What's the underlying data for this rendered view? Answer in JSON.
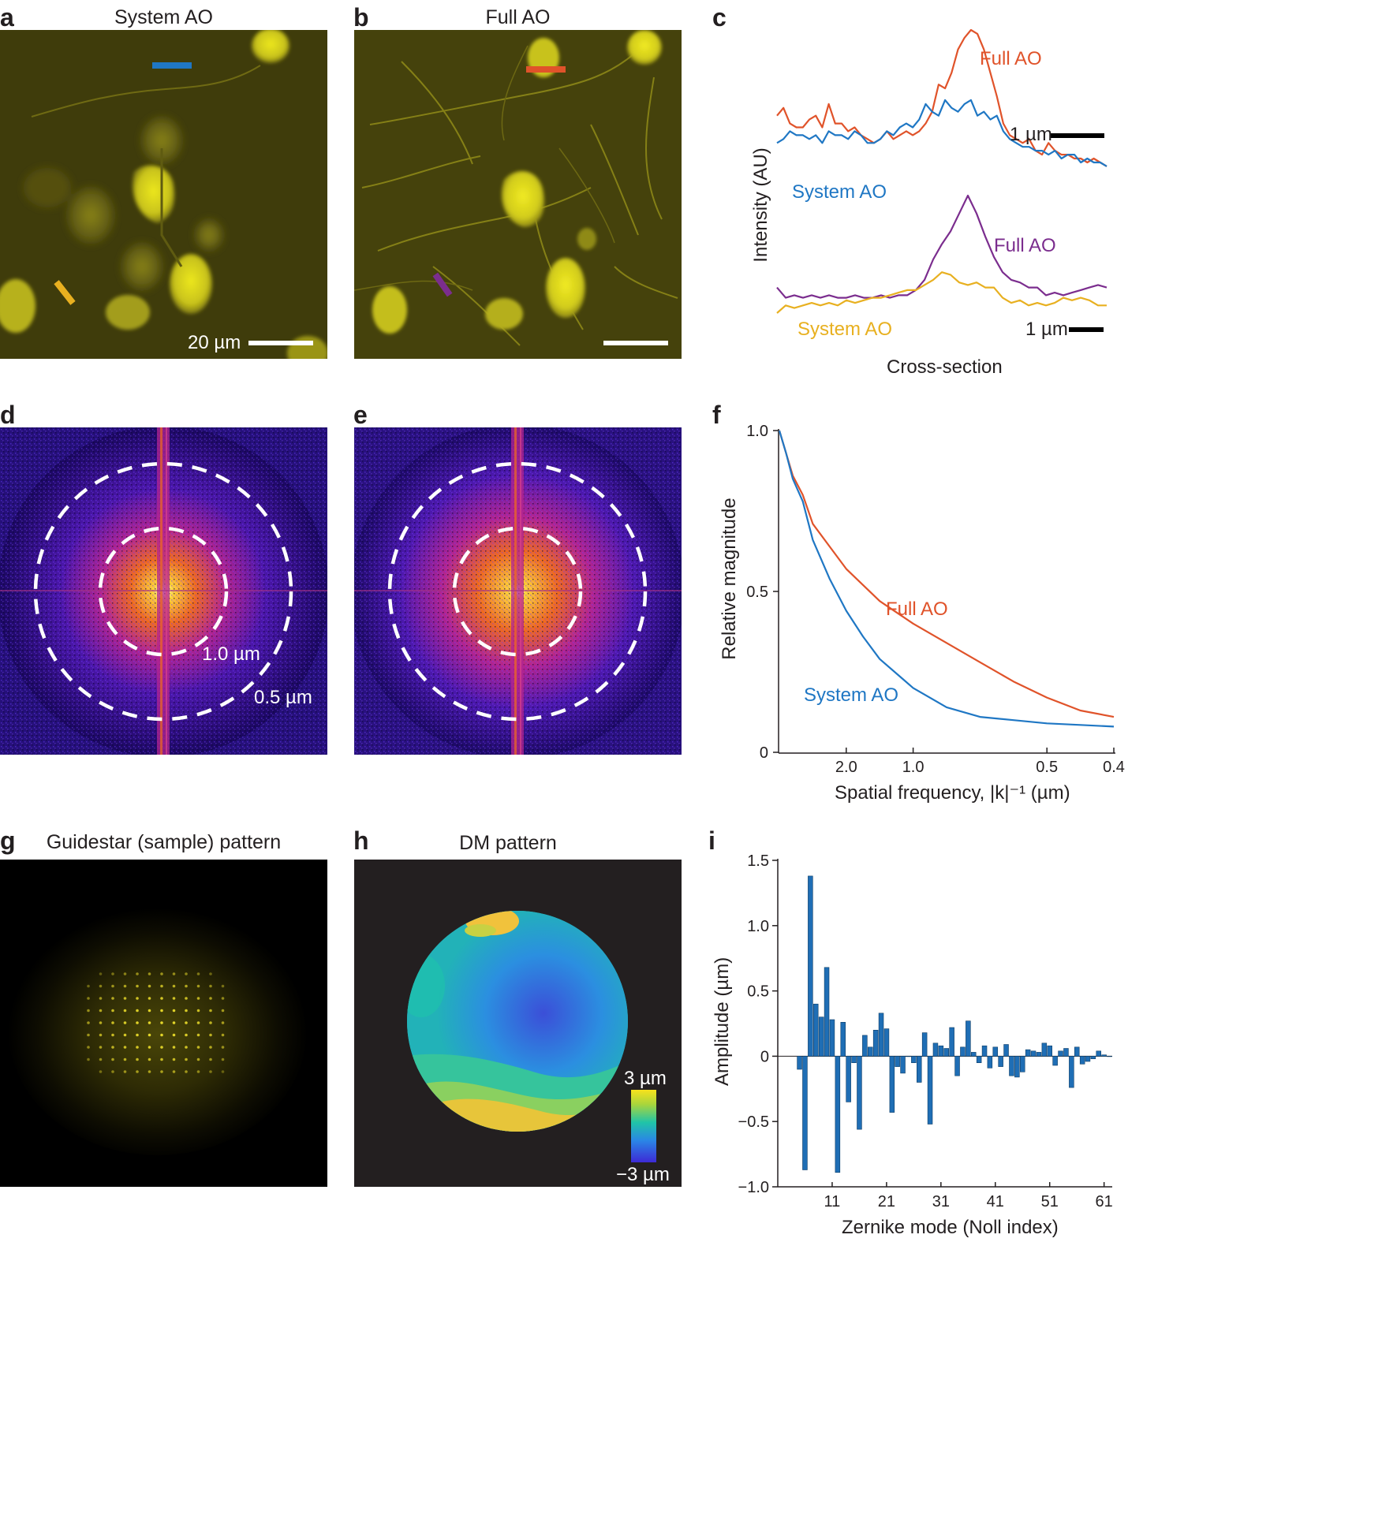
{
  "panel_letters": {
    "a": "a",
    "b": "b",
    "c": "c",
    "d": "d",
    "e": "e",
    "f": "f",
    "g": "g",
    "h": "h",
    "i": "i"
  },
  "titles": {
    "a": "System AO",
    "b": "Full AO",
    "g": "Guidestar (sample) pattern",
    "h": "DM pattern"
  },
  "panel_a": {
    "scalebar_label": "20 µm"
  },
  "panel_d": {
    "ring_inner_label": "1.0 µm",
    "ring_outer_label": "0.5 µm"
  },
  "panel_h": {
    "colorbar_max": "3 µm",
    "colorbar_min": "−3  µm"
  },
  "colors": {
    "system_ao_top": "#1f77c4",
    "full_ao_top": "#e0532a",
    "system_ao_bottom": "#e8b020",
    "full_ao_bottom": "#7b2d8e",
    "bars": "#1f6eb5",
    "neuron": "#c8c21e",
    "background_neuron": "#4d4a0e"
  },
  "chart_data": [
    {
      "id": "c",
      "type": "line",
      "xlabel": "Cross-section",
      "ylabel": "Intensity (AU)",
      "scalebar_top": "1 µm",
      "scalebar_bottom": "1 µm",
      "series_top": [
        {
          "name": "Full AO",
          "values": [
            0.56,
            0.6,
            0.52,
            0.5,
            0.5,
            0.54,
            0.56,
            0.5,
            0.62,
            0.52,
            0.52,
            0.48,
            0.5,
            0.46,
            0.44,
            0.42,
            0.44,
            0.48,
            0.44,
            0.46,
            0.48,
            0.46,
            0.48,
            0.52,
            0.58,
            0.72,
            0.7,
            0.78,
            0.9,
            0.96,
            1.0,
            0.98,
            0.9,
            0.78,
            0.66,
            0.52,
            0.46,
            0.44,
            0.42,
            0.44,
            0.38,
            0.36,
            0.42,
            0.38,
            0.36,
            0.36,
            0.34,
            0.34,
            0.32,
            0.34,
            0.32,
            0.3
          ]
        },
        {
          "name": "System AO",
          "values": [
            0.42,
            0.44,
            0.48,
            0.46,
            0.46,
            0.44,
            0.46,
            0.42,
            0.48,
            0.46,
            0.46,
            0.44,
            0.48,
            0.46,
            0.42,
            0.42,
            0.44,
            0.48,
            0.46,
            0.5,
            0.52,
            0.5,
            0.54,
            0.62,
            0.58,
            0.56,
            0.64,
            0.6,
            0.58,
            0.62,
            0.64,
            0.56,
            0.58,
            0.54,
            0.56,
            0.48,
            0.44,
            0.42,
            0.4,
            0.4,
            0.38,
            0.38,
            0.36,
            0.38,
            0.34,
            0.36,
            0.36,
            0.32,
            0.34,
            0.32,
            0.32,
            0.3
          ]
        }
      ],
      "series_bottom": [
        {
          "name": "Full AO",
          "values": [
            0.28,
            0.2,
            0.22,
            0.2,
            0.22,
            0.2,
            0.22,
            0.2,
            0.2,
            0.22,
            0.2,
            0.2,
            0.22,
            0.2,
            0.22,
            0.22,
            0.26,
            0.34,
            0.5,
            0.62,
            0.72,
            0.86,
            1.0,
            0.86,
            0.68,
            0.52,
            0.4,
            0.34,
            0.32,
            0.28,
            0.28,
            0.22,
            0.24,
            0.22,
            0.24,
            0.26,
            0.28,
            0.3,
            0.28
          ]
        },
        {
          "name": "System AO",
          "values": [
            0.08,
            0.14,
            0.12,
            0.14,
            0.16,
            0.14,
            0.16,
            0.14,
            0.18,
            0.16,
            0.18,
            0.2,
            0.2,
            0.22,
            0.24,
            0.26,
            0.26,
            0.3,
            0.34,
            0.4,
            0.38,
            0.32,
            0.3,
            0.32,
            0.28,
            0.28,
            0.2,
            0.16,
            0.18,
            0.14,
            0.16,
            0.14,
            0.16,
            0.2,
            0.18,
            0.2,
            0.18,
            0.14,
            0.14
          ]
        }
      ]
    },
    {
      "id": "f",
      "type": "line",
      "xlabel": "Spatial frequency, |k|⁻¹ (µm)",
      "ylabel": "Relative magnitude",
      "yticks": [
        "1.0",
        "0.5",
        "0"
      ],
      "xticks": [
        "2.0",
        "1.0",
        "0.5",
        "0.4"
      ],
      "series": [
        {
          "name": "Full AO",
          "x": [
            0.0,
            0.02,
            0.04,
            0.07,
            0.1,
            0.15,
            0.2,
            0.25,
            0.3,
            0.4,
            0.5,
            0.6,
            0.7,
            0.8,
            0.9,
            1.0
          ],
          "y": [
            1.0,
            0.93,
            0.86,
            0.8,
            0.71,
            0.64,
            0.57,
            0.52,
            0.47,
            0.4,
            0.34,
            0.28,
            0.22,
            0.17,
            0.13,
            0.11
          ]
        },
        {
          "name": "System AO",
          "x": [
            0.0,
            0.02,
            0.04,
            0.07,
            0.1,
            0.15,
            0.2,
            0.25,
            0.3,
            0.4,
            0.5,
            0.6,
            0.7,
            0.8,
            0.9,
            1.0
          ],
          "y": [
            1.0,
            0.93,
            0.85,
            0.78,
            0.66,
            0.54,
            0.44,
            0.36,
            0.29,
            0.2,
            0.14,
            0.11,
            0.1,
            0.09,
            0.085,
            0.08
          ]
        }
      ],
      "ylim": [
        0,
        1.0
      ]
    },
    {
      "id": "i",
      "type": "bar",
      "xlabel": "Zernike mode (Noll index)",
      "ylabel": "Amplitude (µm)",
      "yticks": [
        "1.5",
        "1.0",
        "0.5",
        "0",
        "−0.5",
        "−1.0"
      ],
      "xticks": [
        "11",
        "21",
        "31",
        "41",
        "51",
        "61"
      ],
      "ylim": [
        -1.0,
        1.5
      ],
      "categories": [
        5,
        6,
        7,
        8,
        9,
        10,
        11,
        12,
        13,
        14,
        15,
        16,
        17,
        18,
        19,
        20,
        21,
        22,
        23,
        24,
        25,
        26,
        27,
        28,
        29,
        30,
        31,
        32,
        33,
        34,
        35,
        36,
        37,
        38,
        39,
        40,
        41,
        42,
        43,
        44,
        45,
        46,
        47,
        48,
        49,
        50,
        51,
        52,
        53,
        54,
        55,
        56,
        57,
        58,
        59,
        60,
        61,
        62
      ],
      "values": [
        -0.1,
        -0.87,
        1.38,
        0.4,
        0.3,
        0.68,
        0.28,
        -0.89,
        0.26,
        -0.35,
        -0.05,
        -0.56,
        0.16,
        0.07,
        0.2,
        0.33,
        0.21,
        -0.43,
        -0.08,
        -0.13,
        0.0,
        -0.05,
        -0.2,
        0.18,
        -0.52,
        0.1,
        0.08,
        0.06,
        0.22,
        -0.15,
        0.07,
        0.27,
        0.03,
        -0.05,
        0.08,
        -0.09,
        0.07,
        -0.08,
        0.09,
        -0.15,
        -0.16,
        -0.12,
        0.05,
        0.04,
        0.03,
        0.1,
        0.08,
        -0.07,
        0.04,
        0.06,
        -0.24,
        0.07,
        -0.06,
        -0.04,
        -0.02,
        0.04,
        0.01,
        0.0
      ]
    }
  ]
}
